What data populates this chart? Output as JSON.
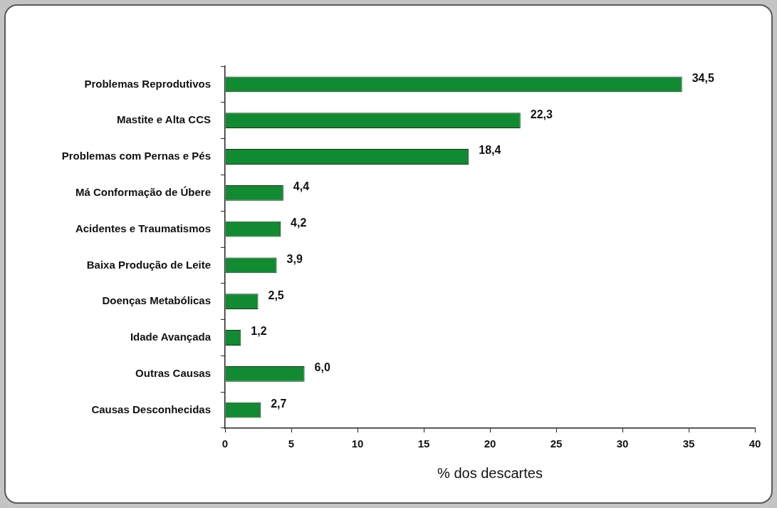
{
  "chart_data": {
    "type": "bar",
    "orientation": "horizontal",
    "xlabel": "% dos descartes",
    "categories": [
      "Problemas Reprodutivos",
      "Mastite e Alta CCS",
      "Problemas com Pernas e Pés",
      "Má Conformação de Úbere",
      "Acidentes e Traumatismos",
      "Baixa Produção de Leite",
      "Doenças Metabólicas",
      "Idade Avançada",
      "Outras Causas",
      "Causas Desconhecidas"
    ],
    "values": [
      34.5,
      22.3,
      18.4,
      4.4,
      4.2,
      3.9,
      2.5,
      1.2,
      6.0,
      2.7
    ],
    "value_labels": [
      "34,5",
      "22,3",
      "18,4",
      "4,4",
      "4,2",
      "3,9",
      "2,5",
      "1,2",
      "6,0",
      "2,7"
    ],
    "color": "#128a32",
    "xlim": [
      0,
      40
    ],
    "xticks": [
      0,
      5,
      10,
      15,
      20,
      25,
      30,
      35,
      40
    ],
    "legend": false
  }
}
